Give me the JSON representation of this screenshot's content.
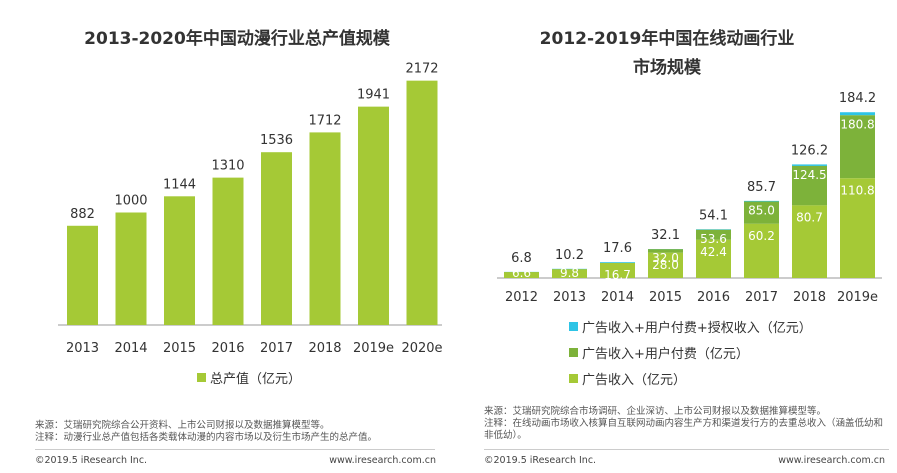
{
  "colors": {
    "primary_green": "#a5c936",
    "dark_green": "#7db23a",
    "cyan": "#2ec4e6",
    "label_white": "#ffffff"
  },
  "left": {
    "legend_label": "总产值（亿元）",
    "source_note": "来源：艾瑞研究院综合公开资料、上市公司财报以及数据推算模型等。",
    "note_text": "注释：动漫行业总产值包括各类载体动漫的内容市场以及衍生市场产生的总产值。",
    "copyright": "©2019.5 iResearch Inc.",
    "website": "www.iresearch.com.cn"
  },
  "right": {
    "legend": [
      {
        "label": "广告收入+用户付费+授权收入（亿元）"
      },
      {
        "label": "广告收入+用户付费（亿元）"
      },
      {
        "label": "广告收入（亿元）"
      }
    ],
    "source_note": "来源：艾瑞研究院综合市场调研、企业深访、上市公司财报以及数据推算模型等。",
    "note_text": "注释：在线动画市场收入核算自互联网动画内容生产方和渠道发行方的去重总收入（涵盖低幼和非低幼）。",
    "copyright": "©2019.5 iResearch Inc.",
    "website": "www.iresearch.com.cn"
  },
  "chart_data": [
    {
      "type": "bar",
      "title": "2013-2020年中国动漫行业总产值规模",
      "categories": [
        "2013",
        "2014",
        "2015",
        "2016",
        "2017",
        "2018",
        "2019e",
        "2020e"
      ],
      "series": [
        {
          "name": "总产值（亿元）",
          "values": [
            882,
            1000,
            1144,
            1310,
            1536,
            1712,
            1941,
            2172
          ]
        }
      ],
      "ylim": [
        0,
        2400
      ],
      "grid": false,
      "legend_position": "bottom"
    },
    {
      "type": "bar",
      "title": "2012-2019年中国在线动画行业市场规模",
      "title_lines": [
        "2012-2019年中国在线动画行业",
        "市场规模"
      ],
      "categories": [
        "2012",
        "2013",
        "2014",
        "2015",
        "2016",
        "2017",
        "2018",
        "2019e"
      ],
      "series": [
        {
          "name": "广告收入+用户付费+授权收入（亿元）",
          "values": [
            6.8,
            10.2,
            17.6,
            32.1,
            54.1,
            85.7,
            126.2,
            184.2
          ]
        },
        {
          "name": "广告收入+用户付费（亿元）",
          "values": [
            6.6,
            9.8,
            16.7,
            32.0,
            53.6,
            85.0,
            124.5,
            180.8
          ]
        },
        {
          "name": "广告收入（亿元）",
          "values": [
            6.6,
            9.8,
            16.7,
            28.0,
            42.4,
            60.2,
            80.7,
            110.8
          ]
        }
      ],
      "ylim": [
        0,
        200
      ],
      "grid": false,
      "legend_position": "bottom"
    }
  ]
}
